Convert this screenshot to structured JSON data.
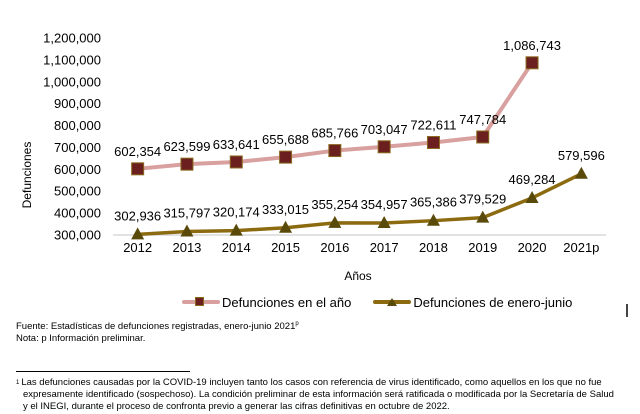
{
  "chart_data": {
    "type": "line",
    "title": "",
    "xlabel": "Años",
    "ylabel": "Defunciones",
    "ylim": [
      300000,
      1200000
    ],
    "yticks": [
      300000,
      400000,
      500000,
      600000,
      700000,
      800000,
      900000,
      1000000,
      1100000,
      1200000
    ],
    "ytick_labels": [
      "300,000",
      "400,000",
      "500,000",
      "600,000",
      "700,000",
      "800,000",
      "900,000",
      "1,000,000",
      "1,100,000",
      "1,200,000"
    ],
    "categories": [
      "2012",
      "2013",
      "2014",
      "2015",
      "2016",
      "2017",
      "2018",
      "2019",
      "2020",
      "2021p"
    ],
    "grid": false,
    "legend_position": "bottom",
    "series": [
      {
        "name": "Defunciones en el año",
        "values": [
          602354,
          623599,
          633641,
          655688,
          685766,
          703047,
          722611,
          747784,
          1086743,
          null
        ],
        "labels": [
          "602,354",
          "623,599",
          "633,641",
          "655,688",
          "685,766",
          "703,047",
          "722,611",
          "747,784",
          "1,086,743",
          null
        ],
        "line_color": "#d9a0a0",
        "marker": "square",
        "marker_fill": "#6b1f1f",
        "marker_edge": "#8b6a1f"
      },
      {
        "name": "Defunciones de enero-junio",
        "values": [
          302936,
          315797,
          320174,
          333015,
          355254,
          354957,
          365386,
          379529,
          469284,
          579596
        ],
        "labels": [
          "302,936",
          "315,797",
          "320,174",
          "333,015",
          "355,254",
          "354,957",
          "365,386",
          "379,529",
          "469,284",
          "579,596"
        ],
        "line_color": "#8b6a10",
        "marker": "triangle",
        "marker_fill": "#5a4a0a"
      }
    ]
  },
  "notes": {
    "source": "Fuente: Estadísticas de defunciones registradas, enero-junio 2021",
    "source_sup": "p",
    "note": "Nota: p Información preliminar."
  },
  "footnote": {
    "marker": "1",
    "lines": [
      "Las defunciones causadas por la COVID-19 incluyen tanto los casos con referencia de virus identificado, como aquellos en los que no fue",
      "expresamente identificado (sospechoso). La condición preliminar de esta información será ratificada o modificada por la Secretaría de Salud",
      "y el INEGI, durante el proceso de confronta previo a generar las cifras definitivas en octubre de 2022."
    ]
  }
}
